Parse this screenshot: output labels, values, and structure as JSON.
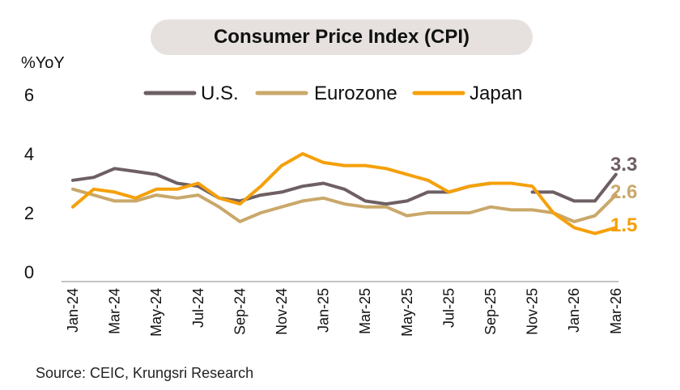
{
  "source": "Source: CEIC, Krungsri Research",
  "chart_data": {
    "type": "line",
    "title": "Consumer Price Index (CPI)",
    "ylabel": "%YoY",
    "xlabel": "",
    "ylim": [
      0,
      6
    ],
    "yticks": [
      "0",
      "2",
      "4",
      "6"
    ],
    "grid": false,
    "legend_position": "top",
    "x": [
      "Jan-24",
      "Feb-24",
      "Mar-24",
      "Apr-24",
      "May-24",
      "Jun-24",
      "Jul-24",
      "Aug-24",
      "Sep-24",
      "Oct-24",
      "Nov-24",
      "Dec-24",
      "Jan-25",
      "Feb-25",
      "Mar-25",
      "Apr-25",
      "May-25",
      "Jun-25",
      "Jul-25",
      "Aug-25",
      "Sep-25",
      "Oct-25",
      "Nov-25",
      "Dec-25",
      "Jan-26",
      "Feb-26",
      "Mar-26"
    ],
    "xtick_labels": [
      "Jan-24",
      "Mar-24",
      "May-24",
      "Jul-24",
      "Sep-24",
      "Nov-24",
      "Jan-25",
      "Mar-25",
      "May-25",
      "Jul-25",
      "Sep-25",
      "Nov-25",
      "Jan-26",
      "Mar-26"
    ],
    "series": [
      {
        "name": "U.S.",
        "color": "#6e5f63",
        "values": [
          3.1,
          3.2,
          3.5,
          3.4,
          3.3,
          3.0,
          2.9,
          2.5,
          2.4,
          2.6,
          2.7,
          2.9,
          3.0,
          2.8,
          2.4,
          2.3,
          2.4,
          2.7,
          2.7,
          2.9,
          3.0,
          null,
          2.7,
          2.7,
          2.4,
          2.4,
          3.3
        ],
        "end_label": "3.3"
      },
      {
        "name": "Eurozone",
        "color": "#c9a86a",
        "values": [
          2.8,
          2.6,
          2.4,
          2.4,
          2.6,
          2.5,
          2.6,
          2.2,
          1.7,
          2.0,
          2.2,
          2.4,
          2.5,
          2.3,
          2.2,
          2.2,
          1.9,
          2.0,
          2.0,
          2.0,
          2.2,
          2.1,
          2.1,
          2.0,
          1.7,
          1.9,
          2.6
        ],
        "end_label": "2.6"
      },
      {
        "name": "Japan",
        "color": "#f5a00a",
        "values": [
          2.2,
          2.8,
          2.7,
          2.5,
          2.8,
          2.8,
          3.0,
          2.5,
          2.3,
          2.9,
          3.6,
          4.0,
          3.7,
          3.6,
          3.6,
          3.5,
          3.3,
          3.1,
          2.7,
          2.9,
          3.0,
          3.0,
          2.9,
          2.0,
          1.5,
          1.3,
          1.5
        ],
        "end_label": "1.5"
      }
    ]
  }
}
